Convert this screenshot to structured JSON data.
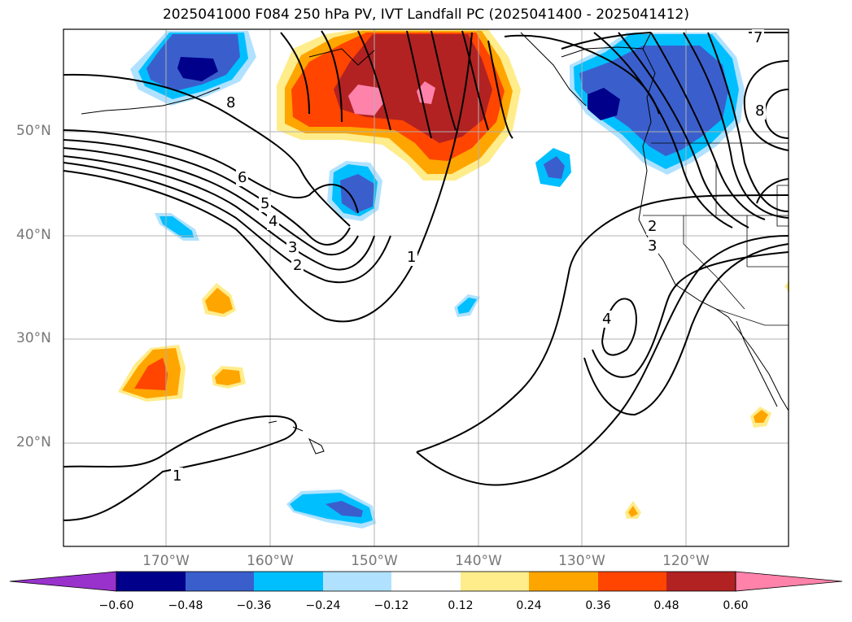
{
  "title": "2025041000 F084 250 hPa PV, IVT Landfall PC (2025041400 - 2025041412)",
  "axes": {
    "lat_labels": [
      "50°N",
      "40°N",
      "30°N",
      "20°N"
    ],
    "lon_labels": [
      "170°W",
      "160°W",
      "150°W",
      "140°W",
      "130°W",
      "120°W"
    ]
  },
  "contour_labels": [
    "7",
    "8",
    "8",
    "6",
    "5",
    "4",
    "3",
    "2",
    "1",
    "1",
    "2",
    "3",
    "4"
  ],
  "colorbar": {
    "ticks": [
      "−0.60",
      "−0.48",
      "−0.36",
      "−0.24",
      "−0.12",
      "0.12",
      "0.24",
      "0.36",
      "0.48",
      "0.60"
    ],
    "colors": [
      "#9932cc",
      "#00008b",
      "#3a5fcd",
      "#00bfff",
      "#b0e2ff",
      "#ffffff",
      "#ffec8b",
      "#ffa500",
      "#ff4500",
      "#b22222",
      "#ff82ab"
    ]
  },
  "map": {
    "shading": [
      {
        "name": "pv-positive-north-pacific",
        "color": "#b22222"
      },
      {
        "name": "pv-negative-pacific-northwest",
        "color": "#3a5fcd"
      },
      {
        "name": "pv-negative-bering",
        "color": "#3a5fcd"
      },
      {
        "name": "pv-positive-central-pacific",
        "color": "#ff4500"
      }
    ]
  }
}
